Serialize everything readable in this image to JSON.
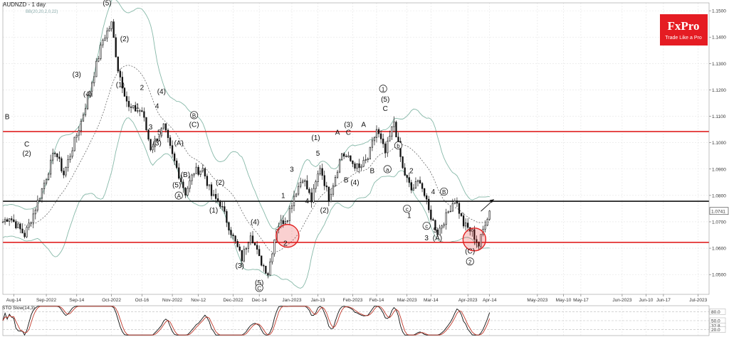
{
  "chart_data": {
    "type": "candlestick",
    "title": "AUDNZD - 1 day",
    "indicator_label": "BB(20,20,2,0,22)",
    "oscillator_label": "STO Slow(14,3)",
    "current_price": "1.0741",
    "y_ticks": [
      "1.1500",
      "1.1400",
      "1.1300",
      "1.1200",
      "1.1100",
      "1.1000",
      "1.0900",
      "1.0800",
      "1.0700",
      "1.0600",
      "1.0500"
    ],
    "ylim": [
      1.0425,
      1.153
    ],
    "x_ticks": [
      {
        "label": "Aug-14",
        "i": 5
      },
      {
        "label": "Sep-2022",
        "i": 20
      },
      {
        "label": "Sep-14",
        "i": 34
      },
      {
        "label": "Oct-2022",
        "i": 50
      },
      {
        "label": "Oct-16",
        "i": 64
      },
      {
        "label": "Nov-2022",
        "i": 78
      },
      {
        "label": "Nov-12",
        "i": 90
      },
      {
        "label": "Dec-2022",
        "i": 106
      },
      {
        "label": "Dec-14",
        "i": 118
      },
      {
        "label": "Jan-2023",
        "i": 133
      },
      {
        "label": "Jan-13",
        "i": 145
      },
      {
        "label": "Feb-2023",
        "i": 161
      },
      {
        "label": "Feb-14",
        "i": 172
      },
      {
        "label": "Mar-2023",
        "i": 186
      },
      {
        "label": "Mar-14",
        "i": 197
      },
      {
        "label": "Apr-2023",
        "i": 214
      },
      {
        "label": "Apr-14",
        "i": 224
      },
      {
        "label": "May-2023",
        "i": 246
      },
      {
        "label": "May-10",
        "i": 258
      },
      {
        "label": "May-17",
        "i": 266
      },
      {
        "label": "Jun-2023",
        "i": 285
      },
      {
        "label": "Jun-10",
        "i": 296
      },
      {
        "label": "Jun-17",
        "i": 304
      },
      {
        "label": "Jul-2023",
        "i": 320
      }
    ],
    "levels": [
      {
        "value": 1.1042,
        "color": "#e02020"
      },
      {
        "value": 1.0778,
        "color": "#111111"
      },
      {
        "value": 1.0622,
        "color": "#e02020"
      }
    ],
    "stoch_ticks": [
      "80.0",
      "50.0",
      "32.8",
      "20.0"
    ],
    "circles": [
      {
        "i": 131,
        "y": 1.0647
      },
      {
        "i": 217,
        "y": 1.0633
      }
    ],
    "arrow": {
      "from": {
        "i": 220,
        "y": 1.074
      },
      "to": {
        "i": 226,
        "y": 1.0785
      }
    },
    "price_anchors": [
      [
        0,
        1.07
      ],
      [
        3,
        1.072
      ],
      [
        10,
        1.065
      ],
      [
        14,
        1.073
      ],
      [
        20,
        1.087
      ],
      [
        24,
        1.097
      ],
      [
        28,
        1.088
      ],
      [
        36,
        1.108
      ],
      [
        40,
        1.12
      ],
      [
        46,
        1.139
      ],
      [
        50,
        1.145
      ],
      [
        53,
        1.128
      ],
      [
        58,
        1.113
      ],
      [
        64,
        1.112
      ],
      [
        68,
        1.098
      ],
      [
        74,
        1.106
      ],
      [
        78,
        1.095
      ],
      [
        84,
        1.081
      ],
      [
        88,
        1.089
      ],
      [
        92,
        1.09
      ],
      [
        96,
        1.08
      ],
      [
        100,
        1.077
      ],
      [
        106,
        1.064
      ],
      [
        110,
        1.056
      ],
      [
        114,
        1.066
      ],
      [
        118,
        1.056
      ],
      [
        122,
        1.0505
      ],
      [
        126,
        1.068
      ],
      [
        131,
        1.072
      ],
      [
        134,
        1.08
      ],
      [
        138,
        1.087
      ],
      [
        142,
        1.078
      ],
      [
        146,
        1.091
      ],
      [
        150,
        1.079
      ],
      [
        156,
        1.096
      ],
      [
        160,
        1.093
      ],
      [
        164,
        1.09
      ],
      [
        168,
        1.094
      ],
      [
        172,
        1.105
      ],
      [
        176,
        1.096
      ],
      [
        180,
        1.108
      ],
      [
        184,
        1.09
      ],
      [
        188,
        1.082
      ],
      [
        192,
        1.086
      ],
      [
        196,
        1.074
      ],
      [
        200,
        1.066
      ],
      [
        204,
        1.072
      ],
      [
        208,
        1.079
      ],
      [
        212,
        1.069
      ],
      [
        216,
        1.066
      ],
      [
        219,
        1.061
      ],
      [
        222,
        1.07
      ],
      [
        224,
        1.0741
      ]
    ],
    "wave_labels": [
      {
        "t": "B",
        "i": 2,
        "y": 1.109
      },
      {
        "t": "C",
        "i": 11,
        "y": 1.0985
      },
      {
        "t": "(2)",
        "i": 11,
        "y": 1.095
      },
      {
        "t": "(3)",
        "i": 34,
        "y": 1.125
      },
      {
        "t": "(4)",
        "i": 39,
        "y": 1.1175
      },
      {
        "t": "(5)",
        "i": 48,
        "y": 1.152
      },
      {
        "t": "(2)",
        "i": 56,
        "y": 1.1385
      },
      {
        "t": "(1)",
        "i": 54,
        "y": 1.121
      },
      {
        "t": "2",
        "i": 64,
        "y": 1.12
      },
      {
        "t": "1",
        "i": 62,
        "y": 1.113
      },
      {
        "t": "4",
        "i": 71,
        "y": 1.113
      },
      {
        "t": "(4)",
        "i": 73,
        "y": 1.1185
      },
      {
        "t": "3",
        "i": 68,
        "y": 1.105
      },
      {
        "t": "5",
        "i": 72,
        "y": 1.103
      },
      {
        "t": "(3)",
        "i": 71,
        "y": 1.099
      },
      {
        "t": "(A)",
        "i": 81,
        "y": 1.099
      },
      {
        "t": "(C)",
        "i": 88,
        "y": 1.106
      },
      {
        "t": "(B)",
        "i": 84,
        "y": 1.087
      },
      {
        "t": "(5)",
        "i": 80,
        "y": 1.083
      },
      {
        "t": "(2)",
        "i": 100,
        "y": 1.084
      },
      {
        "t": "(1)",
        "i": 97,
        "y": 1.0735
      },
      {
        "t": "(4)",
        "i": 116,
        "y": 1.069
      },
      {
        "t": "(3)",
        "i": 109,
        "y": 1.0525
      },
      {
        "t": "(5)",
        "i": 118,
        "y": 1.046
      },
      {
        "t": "3",
        "i": 133,
        "y": 1.089
      },
      {
        "t": "1",
        "i": 129,
        "y": 1.079
      },
      {
        "t": "4",
        "i": 140,
        "y": 1.077
      },
      {
        "t": "2",
        "i": 130,
        "y": 1.061
      },
      {
        "t": "(1)",
        "i": 144,
        "y": 1.101
      },
      {
        "t": "5",
        "i": 145,
        "y": 1.095
      },
      {
        "t": "(2)",
        "i": 148,
        "y": 1.0735
      },
      {
        "t": "A",
        "i": 154,
        "y": 1.103
      },
      {
        "t": "C",
        "i": 159,
        "y": 1.103
      },
      {
        "t": "(3)",
        "i": 159,
        "y": 1.106
      },
      {
        "t": "A",
        "i": 166,
        "y": 1.106
      },
      {
        "t": "B",
        "i": 158,
        "y": 1.085
      },
      {
        "t": "(4)",
        "i": 162,
        "y": 1.084
      },
      {
        "t": "B",
        "i": 170,
        "y": 1.0885
      },
      {
        "t": "(5)",
        "i": 176,
        "y": 1.1155
      },
      {
        "t": "C",
        "i": 176,
        "y": 1.112
      },
      {
        "t": "2",
        "i": 188,
        "y": 1.0885
      },
      {
        "t": "4",
        "i": 198,
        "y": 1.0805
      },
      {
        "t": "1",
        "i": 187,
        "y": 1.0715
      },
      {
        "t": "3",
        "i": 195,
        "y": 1.063
      },
      {
        "t": "5",
        "i": 199,
        "y": 1.066
      },
      {
        "t": "(A)",
        "i": 200,
        "y": 1.063
      },
      {
        "t": "(C)",
        "i": 215,
        "y": 1.058
      }
    ],
    "circled_labels": [
      {
        "t": "5",
        "i": 48,
        "y": 1.156
      },
      {
        "t": "B",
        "i": 88,
        "y": 1.1095
      },
      {
        "t": "A",
        "i": 81,
        "y": 1.079
      },
      {
        "t": "C",
        "i": 118,
        "y": 1.044
      },
      {
        "t": "1",
        "i": 175,
        "y": 1.1195
      },
      {
        "t": "b",
        "i": 182,
        "y": 1.098
      },
      {
        "t": "a",
        "i": 177,
        "y": 1.089
      },
      {
        "t": "c",
        "i": 186,
        "y": 1.074
      },
      {
        "t": "c",
        "i": 195,
        "y": 1.0675
      },
      {
        "t": "B",
        "i": 203,
        "y": 1.0805
      },
      {
        "t": "2",
        "i": 215,
        "y": 1.054
      }
    ]
  },
  "logo": {
    "brand": "FxPro",
    "tagline": "Trade Like a Pro",
    "color": "#e51c23"
  }
}
